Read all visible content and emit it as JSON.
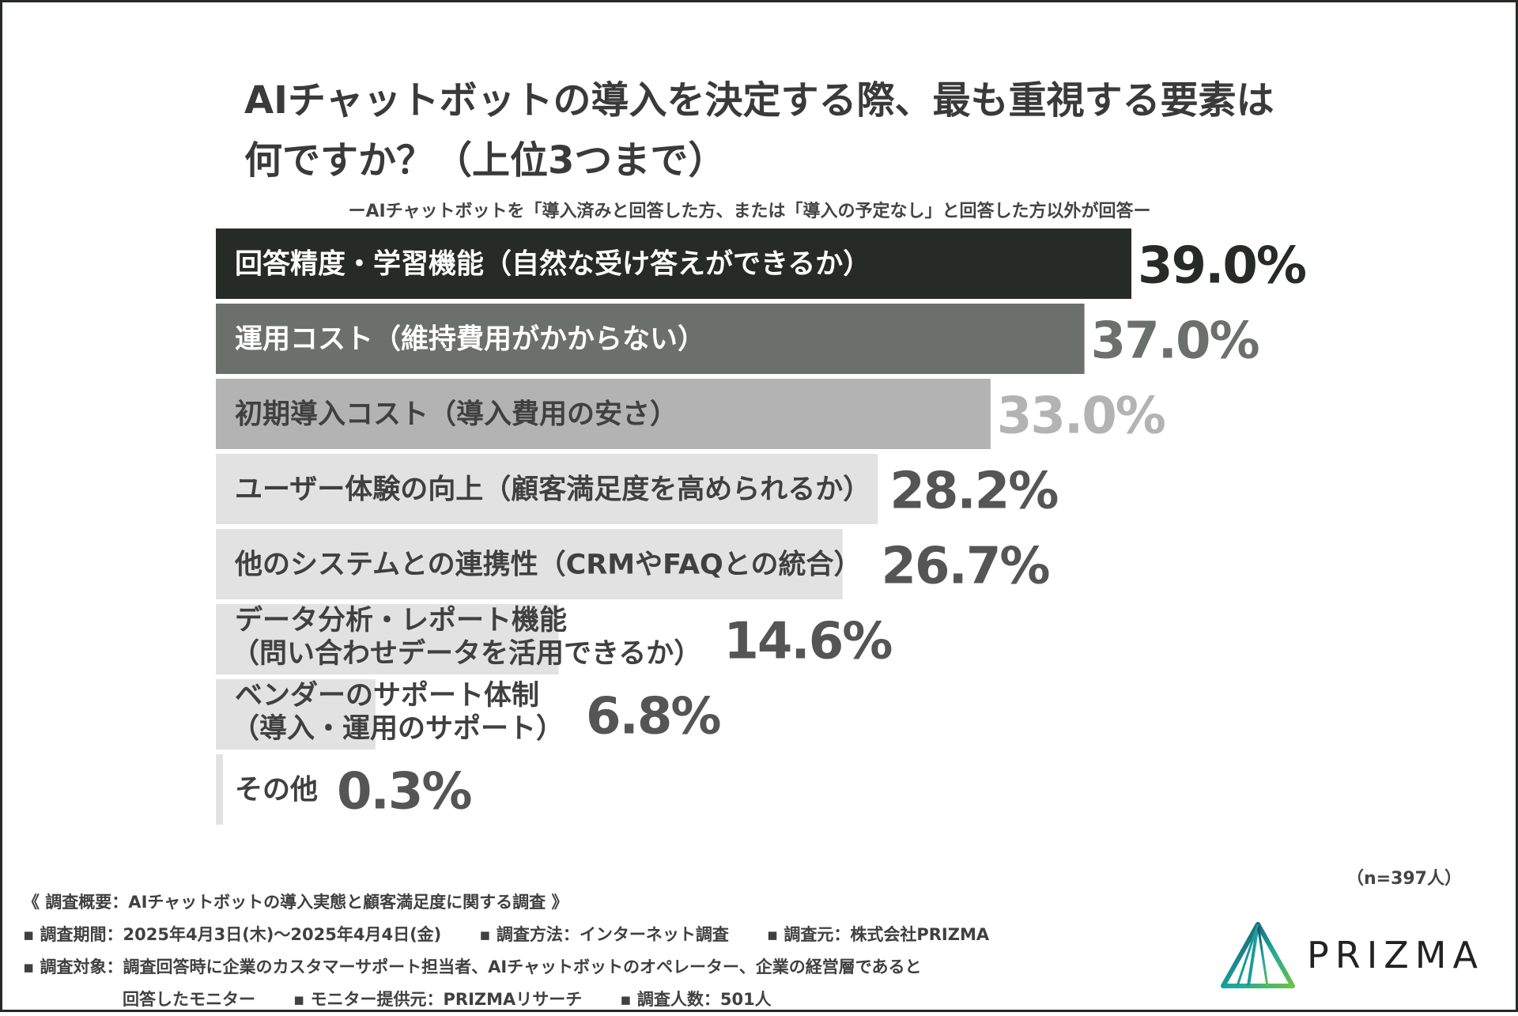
{
  "title_line1": "AIチャットボットの導入を決定する際、最も重視する要素は",
  "title_line2": "何ですか？（上位3つまで）",
  "subtitle": "ーAIチャットボットを「導入済みと回答した方、または「導入の予定なし」と回答した方以外が回答ー",
  "sample_note": "（n=397人）",
  "chart_data": {
    "type": "bar",
    "orientation": "horizontal",
    "title": "AIチャットボットの導入を決定する際、最も重視する要素は何ですか？（上位3つまで）",
    "unit": "%",
    "xlim": [
      0,
      39.0
    ],
    "categories": [
      [
        "回答精度・学習機能（自然な受け答えができるか）"
      ],
      [
        "運用コスト（維持費用がかからない）"
      ],
      [
        "初期導入コスト（導入費用の安さ）"
      ],
      [
        "ユーザー体験の向上（顧客満足度を高められるか）"
      ],
      [
        "他のシステムとの連携性（CRMやFAQとの統合）"
      ],
      [
        "データ分析・レポート機能",
        "（問い合わせデータを活用できるか）"
      ],
      [
        "ベンダーのサポート体制",
        "（導入・運用のサポート）"
      ],
      [
        "その他"
      ]
    ],
    "values": [
      39.0,
      37.0,
      33.0,
      28.2,
      26.7,
      14.6,
      6.8,
      0.3
    ],
    "value_labels": [
      "39.0%",
      "37.0%",
      "33.0%",
      "28.2%",
      "26.7%",
      "14.6%",
      "6.8%",
      "0.3%"
    ],
    "bar_colors": [
      "#262b27",
      "#6c706d",
      "#b3b3b3",
      "#e2e2e2",
      "#e2e2e2",
      "#e2e2e2",
      "#e2e2e2",
      "#e2e2e2"
    ],
    "label_colors": [
      "#ffffff",
      "#ffffff",
      "#404040",
      "#404040",
      "#404040",
      "#404040",
      "#404040",
      "#404040"
    ],
    "value_colors": [
      "#262b27",
      "#6c706d",
      "#b3b3b3",
      "#555555",
      "#555555",
      "#555555",
      "#555555",
      "#555555"
    ]
  },
  "footer": {
    "survey_name": "《 調査概要：AIチャットボットの導入実態と顧客満足度に関する調査 》",
    "period": "▪ 調査期間：2025年4月3日(木)〜2025年4月4日(金)",
    "method": "▪ 調査方法：インターネット調査",
    "organizer": "▪ 調査元：株式会社PRIZMA",
    "target_line1": "▪ 調査対象：調査回答時に企業のカスタマーサポート担当者、AIチャットボットのオペレーター、企業の経営層であると",
    "target_line2": "回答したモニター",
    "provider": "▪ モニター提供元：PRIZMAリサーチ",
    "respondents": "▪ 調査人数：501人"
  },
  "logo_text": "PRIZMA",
  "brand_colors": {
    "logo_dark": "#1f3c5a",
    "logo_teal": "#1aa6a0",
    "logo_green": "#6cc04a"
  }
}
